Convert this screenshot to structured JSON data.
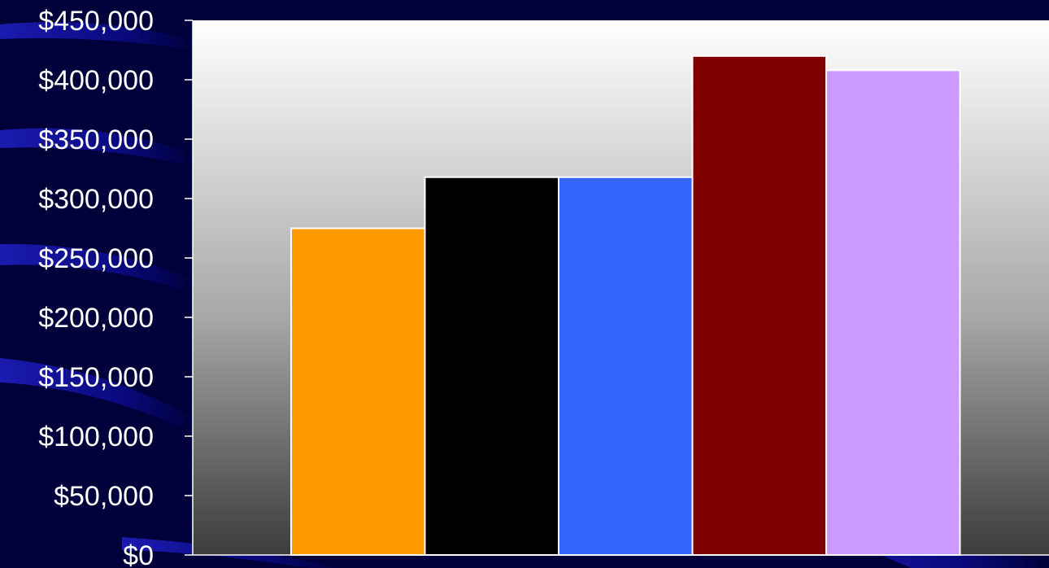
{
  "chart_data": {
    "type": "bar",
    "title": "",
    "xlabel": "",
    "ylabel": "",
    "ylim": [
      0,
      450000
    ],
    "yticks": [
      {
        "value": 0,
        "label": "$0"
      },
      {
        "value": 50000,
        "label": "$50,000"
      },
      {
        "value": 100000,
        "label": "$100,000"
      },
      {
        "value": 150000,
        "label": "$150,000"
      },
      {
        "value": 200000,
        "label": "$200,000"
      },
      {
        "value": 250000,
        "label": "$250,000"
      },
      {
        "value": 300000,
        "label": "$300,000"
      },
      {
        "value": 350000,
        "label": "$350,000"
      },
      {
        "value": 400000,
        "label": "$400,000"
      },
      {
        "value": 450000,
        "label": "$450,000"
      }
    ],
    "bars": [
      {
        "value": 275000,
        "color": "#ff9900"
      },
      {
        "value": 318000,
        "color": "#000000"
      },
      {
        "value": 318000,
        "color": "#3366ff"
      },
      {
        "value": 420000,
        "color": "#800000"
      },
      {
        "value": 408000,
        "color": "#cc99ff"
      }
    ],
    "grid": false,
    "legend": "none",
    "plot_background": "gradient white-to-dark-gray"
  },
  "colors": {
    "background": "#00003a",
    "swoosh": "#1a1aa8",
    "axis_text": "#ffffff",
    "bar_outline": "#ffffff"
  }
}
